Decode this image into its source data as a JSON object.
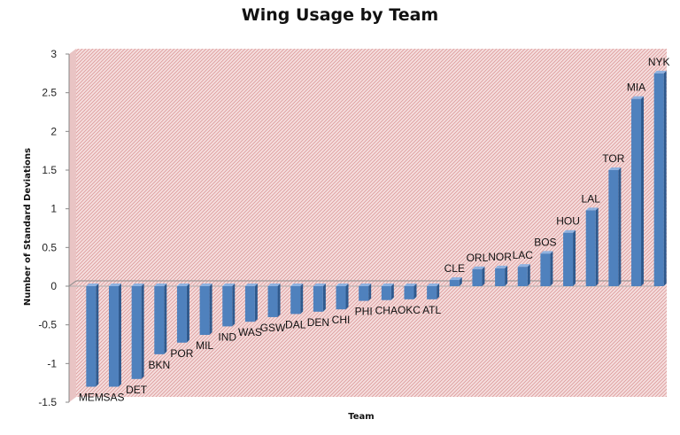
{
  "chart_data": {
    "type": "bar",
    "title": "Wing Usage by Team",
    "xlabel": "Team",
    "ylabel": "Number of Standard Deviations",
    "ylim": [
      -1.5,
      3
    ],
    "yticks": [
      "-1.5",
      "-1",
      "-0.5",
      "0",
      "0.5",
      "1",
      "1.5",
      "2",
      "2.5",
      "3"
    ],
    "grid": false,
    "legend": "none",
    "categories": [
      "MEM",
      "SAS",
      "DET",
      "BKN",
      "POR",
      "MIL",
      "IND",
      "WAS",
      "GSW",
      "DAL",
      "DEN",
      "CHI",
      "PHI",
      "CHA",
      "OKC",
      "ATL",
      "CLE",
      "ORL",
      "NOR",
      "LAC",
      "BOS",
      "HOU",
      "LAL",
      "TOR",
      "MIA",
      "NYK"
    ],
    "values": [
      -1.3,
      -1.3,
      -1.2,
      -0.88,
      -0.73,
      -0.63,
      -0.52,
      -0.46,
      -0.4,
      -0.36,
      -0.33,
      -0.3,
      -0.19,
      -0.18,
      -0.17,
      -0.17,
      0.08,
      0.22,
      0.23,
      0.25,
      0.42,
      0.69,
      0.98,
      1.5,
      2.42,
      2.75
    ],
    "colors": {
      "bar": "#4f81bd",
      "bar_shade": "#2f5a8e",
      "bar_top": "#8fb2e0",
      "plot_bg": "#f5dede",
      "plot_hatch": "#d98a8a",
      "baseline": "#8a8a8a"
    }
  }
}
